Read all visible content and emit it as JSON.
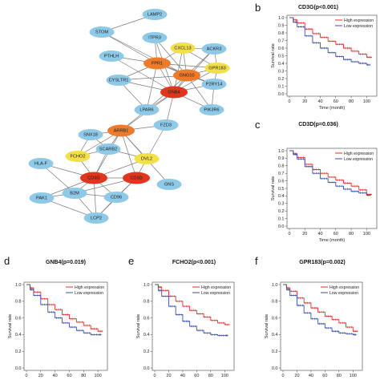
{
  "network": {
    "nodes": [
      {
        "id": "LAMP2",
        "label": "LAMP2",
        "color": "#8ec9e8"
      },
      {
        "id": "STOM",
        "label": "STOM",
        "color": "#8ec9e8"
      },
      {
        "id": "ITPR3",
        "label": "ITPR3",
        "color": "#8ec9e8"
      },
      {
        "id": "CXCL13",
        "label": "CXCL13",
        "color": "#f2e04a"
      },
      {
        "id": "ACKR3",
        "label": "ACKR3",
        "color": "#8ec9e8"
      },
      {
        "id": "PTHLH",
        "label": "PTHLH",
        "color": "#8ec9e8"
      },
      {
        "id": "FPR1",
        "label": "FPR1",
        "color": "#ef7b2a"
      },
      {
        "id": "GNG10",
        "label": "GNG10",
        "color": "#ef7b2a"
      },
      {
        "id": "GPR183",
        "label": "GPR183",
        "color": "#f2e04a"
      },
      {
        "id": "GNB4",
        "label": "GNB4",
        "color": "#e0361f"
      },
      {
        "id": "P2RY14",
        "label": "P2RY14",
        "color": "#8ec9e8"
      },
      {
        "id": "CYSLTR1",
        "label": "CYSLTR1",
        "color": "#8ec9e8"
      },
      {
        "id": "LPAR6",
        "label": "LPAR6",
        "color": "#8ec9e8"
      },
      {
        "id": "PIK3R6",
        "label": "PIK3R6",
        "color": "#8ec9e8"
      },
      {
        "id": "SNX18",
        "label": "SNX18",
        "color": "#8ec9e8"
      },
      {
        "id": "ARRB1",
        "label": "ARRB1",
        "color": "#ef7b2a"
      },
      {
        "id": "FZD3",
        "label": "FZD3",
        "color": "#8ec9e8"
      },
      {
        "id": "FCHO2",
        "label": "FCHO2",
        "color": "#f2e04a"
      },
      {
        "id": "SCARB2",
        "label": "SCARB2",
        "color": "#8ec9e8"
      },
      {
        "id": "DVL2",
        "label": "DVL2",
        "color": "#f2e04a"
      },
      {
        "id": "HLA-F",
        "label": "HLA-F",
        "color": "#8ec9e8"
      },
      {
        "id": "CD3G",
        "label": "CD3G",
        "color": "#e0361f"
      },
      {
        "id": "CD3D",
        "label": "CD3D",
        "color": "#e0361f"
      },
      {
        "id": "GNS",
        "label": "GNS",
        "color": "#8ec9e8"
      },
      {
        "id": "PAK1",
        "label": "PAK1",
        "color": "#8ec9e8"
      },
      {
        "id": "B2M",
        "label": "B2M",
        "color": "#8ec9e8"
      },
      {
        "id": "CD96",
        "label": "CD96",
        "color": "#8ec9e8"
      },
      {
        "id": "LCP2",
        "label": "LCP2",
        "color": "#8ec9e8"
      }
    ],
    "edges": [
      [
        "LAMP2",
        "STOM"
      ],
      [
        "STOM",
        "FPR1"
      ],
      [
        "STOM",
        "GNG10"
      ],
      [
        "ITPR3",
        "FPR1"
      ],
      [
        "ITPR3",
        "GNG10"
      ],
      [
        "ITPR3",
        "GNB4"
      ],
      [
        "CXCL13",
        "FPR1"
      ],
      [
        "CXCL13",
        "GNG10"
      ],
      [
        "CXCL13",
        "GNB4"
      ],
      [
        "CXCL13",
        "ACKR3"
      ],
      [
        "CXCL13",
        "GPR183"
      ],
      [
        "ACKR3",
        "GNG10"
      ],
      [
        "ACKR3",
        "GPR183"
      ],
      [
        "ACKR3",
        "GNB4"
      ],
      [
        "PTHLH",
        "FPR1"
      ],
      [
        "PTHLH",
        "GNB4"
      ],
      [
        "FPR1",
        "GNG10"
      ],
      [
        "FPR1",
        "GNB4"
      ],
      [
        "FPR1",
        "GPR183"
      ],
      [
        "FPR1",
        "P2RY14"
      ],
      [
        "FPR1",
        "CYSLTR1"
      ],
      [
        "FPR1",
        "LPAR6"
      ],
      [
        "GNG10",
        "GNB4"
      ],
      [
        "GNG10",
        "GPR183"
      ],
      [
        "GNG10",
        "P2RY14"
      ],
      [
        "GNG10",
        "CYSLTR1"
      ],
      [
        "GNG10",
        "LPAR6"
      ],
      [
        "GNG10",
        "PIK3R6"
      ],
      [
        "GNB4",
        "GPR183"
      ],
      [
        "GNB4",
        "P2RY14"
      ],
      [
        "GNB4",
        "CYSLTR1"
      ],
      [
        "GNB4",
        "LPAR6"
      ],
      [
        "GNB4",
        "PIK3R6"
      ],
      [
        "GNB4",
        "FZD3"
      ],
      [
        "GNB4",
        "ARRB1"
      ],
      [
        "GPR183",
        "P2RY14"
      ],
      [
        "CYSLTR1",
        "LPAR6"
      ],
      [
        "P2RY14",
        "PIK3R6"
      ],
      [
        "LPAR6",
        "ARRB1"
      ],
      [
        "ARRB1",
        "SNX18"
      ],
      [
        "ARRB1",
        "SCARB2"
      ],
      [
        "ARRB1",
        "FZD3"
      ],
      [
        "ARRB1",
        "DVL2"
      ],
      [
        "ARRB1",
        "FCHO2"
      ],
      [
        "ARRB1",
        "CD3G"
      ],
      [
        "ARRB1",
        "CD3D"
      ],
      [
        "ARRB1",
        "GNS"
      ],
      [
        "SNX18",
        "FCHO2"
      ],
      [
        "SNX18",
        "SCARB2"
      ],
      [
        "FCHO2",
        "SCARB2"
      ],
      [
        "FCHO2",
        "CD3G"
      ],
      [
        "SCARB2",
        "DVL2"
      ],
      [
        "SCARB2",
        "CD3G"
      ],
      [
        "FZD3",
        "DVL2"
      ],
      [
        "DVL2",
        "CD3G"
      ],
      [
        "DVL2",
        "CD3D"
      ],
      [
        "HLA-F",
        "CD3G"
      ],
      [
        "HLA-F",
        "B2M"
      ],
      [
        "CD3G",
        "CD3D"
      ],
      [
        "CD3G",
        "PAK1"
      ],
      [
        "CD3G",
        "B2M"
      ],
      [
        "CD3G",
        "CD96"
      ],
      [
        "CD3G",
        "LCP2"
      ],
      [
        "CD3D",
        "B2M"
      ],
      [
        "CD3D",
        "CD96"
      ],
      [
        "CD3D",
        "LCP2"
      ],
      [
        "PAK1",
        "B2M"
      ],
      [
        "PAK1",
        "LCP2"
      ],
      [
        "B2M",
        "CD96"
      ],
      [
        "B2M",
        "LCP2"
      ],
      [
        "CD96",
        "LCP2"
      ]
    ]
  },
  "panels": [
    {
      "letter": "b",
      "title": "CD3G(p<0.001)",
      "xlabel": "Time (month)",
      "ylabel": "Survival rate"
    },
    {
      "letter": "c",
      "title": "CD3D(p=0.036)",
      "xlabel": "Time (month)",
      "ylabel": "Survival rate"
    },
    {
      "letter": "d",
      "title": "GNB4(p=0.019)",
      "xlabel": "",
      "ylabel": "Survival rate"
    },
    {
      "letter": "e",
      "title": "FCHO2(p<0.001)",
      "xlabel": "",
      "ylabel": "Survival rate"
    },
    {
      "letter": "f",
      "title": "GPR183(p=0.002)",
      "xlabel": "",
      "ylabel": "Survival rate"
    }
  ],
  "legend": {
    "high": "High expression",
    "low": "Low expression"
  },
  "colors": {
    "high": "#e0302a",
    "low": "#3b4fa8",
    "edge": "#7a7a7a"
  },
  "chart_data": [
    {
      "type": "line",
      "title": "CD3G(p<0.001)",
      "xlabel": "Time (month)",
      "ylabel": "Survival rate",
      "xlim": [
        0,
        110
      ],
      "ylim": [
        0,
        1.0
      ],
      "xticks": [
        0,
        20,
        40,
        60,
        80,
        100
      ],
      "yticks": [
        0.0,
        0.1,
        0.2,
        0.3,
        0.4,
        0.5,
        0.6,
        0.7,
        0.8,
        0.9,
        1.0
      ],
      "series": [
        {
          "name": "High expression",
          "x": [
            0,
            5,
            10,
            20,
            30,
            40,
            50,
            60,
            70,
            80,
            90,
            100,
            107
          ],
          "values": [
            1.0,
            0.97,
            0.93,
            0.85,
            0.79,
            0.74,
            0.69,
            0.65,
            0.6,
            0.56,
            0.52,
            0.48,
            0.48
          ]
        },
        {
          "name": "Low expression",
          "x": [
            0,
            5,
            10,
            20,
            30,
            40,
            50,
            60,
            70,
            80,
            90,
            100,
            105
          ],
          "values": [
            1.0,
            0.94,
            0.88,
            0.76,
            0.67,
            0.6,
            0.54,
            0.49,
            0.45,
            0.42,
            0.4,
            0.38,
            0.38
          ]
        }
      ]
    },
    {
      "type": "line",
      "title": "CD3D(p=0.036)",
      "xlabel": "Time (month)",
      "ylabel": "Survival rate",
      "xlim": [
        0,
        110
      ],
      "ylim": [
        0,
        1.0
      ],
      "xticks": [
        0,
        20,
        40,
        60,
        80,
        100
      ],
      "yticks": [
        0.0,
        0.1,
        0.2,
        0.3,
        0.4,
        0.5,
        0.6,
        0.7,
        0.8,
        0.9,
        1.0
      ],
      "series": [
        {
          "name": "High expression",
          "x": [
            0,
            5,
            10,
            20,
            30,
            40,
            50,
            60,
            70,
            80,
            90,
            100,
            107
          ],
          "values": [
            1.0,
            0.96,
            0.91,
            0.82,
            0.75,
            0.7,
            0.65,
            0.61,
            0.57,
            0.53,
            0.48,
            0.42,
            0.42
          ]
        },
        {
          "name": "Low expression",
          "x": [
            0,
            5,
            10,
            20,
            30,
            40,
            50,
            60,
            70,
            80,
            90,
            100,
            105
          ],
          "values": [
            1.0,
            0.95,
            0.89,
            0.79,
            0.7,
            0.63,
            0.58,
            0.53,
            0.49,
            0.46,
            0.44,
            0.41,
            0.41
          ]
        }
      ]
    },
    {
      "type": "line",
      "title": "GNB4(p=0.019)",
      "xlabel": "",
      "ylabel": "Survival rate",
      "xlim": [
        0,
        110
      ],
      "ylim": [
        0,
        1.0
      ],
      "xticks": [
        0,
        20,
        40,
        60,
        80,
        100
      ],
      "yticks": [
        0.0,
        0.2,
        0.4,
        0.6,
        0.8,
        1.0
      ],
      "series": [
        {
          "name": "High expression",
          "x": [
            0,
            5,
            10,
            20,
            30,
            40,
            50,
            60,
            70,
            80,
            90,
            100,
            107
          ],
          "values": [
            1.0,
            0.96,
            0.91,
            0.83,
            0.76,
            0.7,
            0.64,
            0.59,
            0.55,
            0.51,
            0.47,
            0.44,
            0.44
          ]
        },
        {
          "name": "Low expression",
          "x": [
            0,
            5,
            10,
            20,
            30,
            40,
            50,
            60,
            70,
            80,
            90,
            100,
            105
          ],
          "values": [
            1.0,
            0.94,
            0.87,
            0.76,
            0.67,
            0.6,
            0.54,
            0.49,
            0.45,
            0.42,
            0.4,
            0.4,
            0.4
          ]
        }
      ]
    },
    {
      "type": "line",
      "title": "FCHO2(p<0.001)",
      "xlabel": "",
      "ylabel": "Survival rate",
      "xlim": [
        0,
        110
      ],
      "ylim": [
        0,
        1.0
      ],
      "xticks": [
        0,
        20,
        40,
        60,
        80,
        100
      ],
      "yticks": [
        0.0,
        0.2,
        0.4,
        0.6,
        0.8,
        1.0
      ],
      "series": [
        {
          "name": "High expression",
          "x": [
            0,
            5,
            10,
            20,
            30,
            40,
            50,
            60,
            70,
            80,
            90,
            100,
            107
          ],
          "values": [
            1.0,
            0.97,
            0.93,
            0.86,
            0.8,
            0.74,
            0.69,
            0.65,
            0.61,
            0.57,
            0.54,
            0.52,
            0.52
          ]
        },
        {
          "name": "Low expression",
          "x": [
            0,
            5,
            10,
            20,
            30,
            40,
            50,
            60,
            70,
            80,
            90,
            100,
            105
          ],
          "values": [
            1.0,
            0.93,
            0.86,
            0.74,
            0.64,
            0.56,
            0.5,
            0.45,
            0.42,
            0.4,
            0.39,
            0.39,
            0.39
          ]
        }
      ]
    },
    {
      "type": "line",
      "title": "GPR183(p=0.002)",
      "xlabel": "",
      "ylabel": "Survival rate",
      "xlim": [
        0,
        110
      ],
      "ylim": [
        0,
        1.0
      ],
      "xticks": [
        0,
        20,
        40,
        60,
        80,
        100
      ],
      "yticks": [
        0.0,
        0.2,
        0.4,
        0.6,
        0.8,
        1.0
      ],
      "series": [
        {
          "name": "High expression",
          "x": [
            0,
            5,
            10,
            20,
            30,
            40,
            50,
            60,
            70,
            80,
            90,
            100,
            107
          ],
          "values": [
            1.0,
            0.96,
            0.92,
            0.84,
            0.78,
            0.72,
            0.67,
            0.62,
            0.58,
            0.54,
            0.49,
            0.44,
            0.44
          ]
        },
        {
          "name": "Low expression",
          "x": [
            0,
            5,
            10,
            20,
            30,
            40,
            50,
            60,
            70,
            80,
            90,
            100,
            105
          ],
          "values": [
            1.0,
            0.94,
            0.87,
            0.75,
            0.66,
            0.59,
            0.53,
            0.48,
            0.44,
            0.42,
            0.41,
            0.4,
            0.4
          ]
        }
      ]
    }
  ]
}
